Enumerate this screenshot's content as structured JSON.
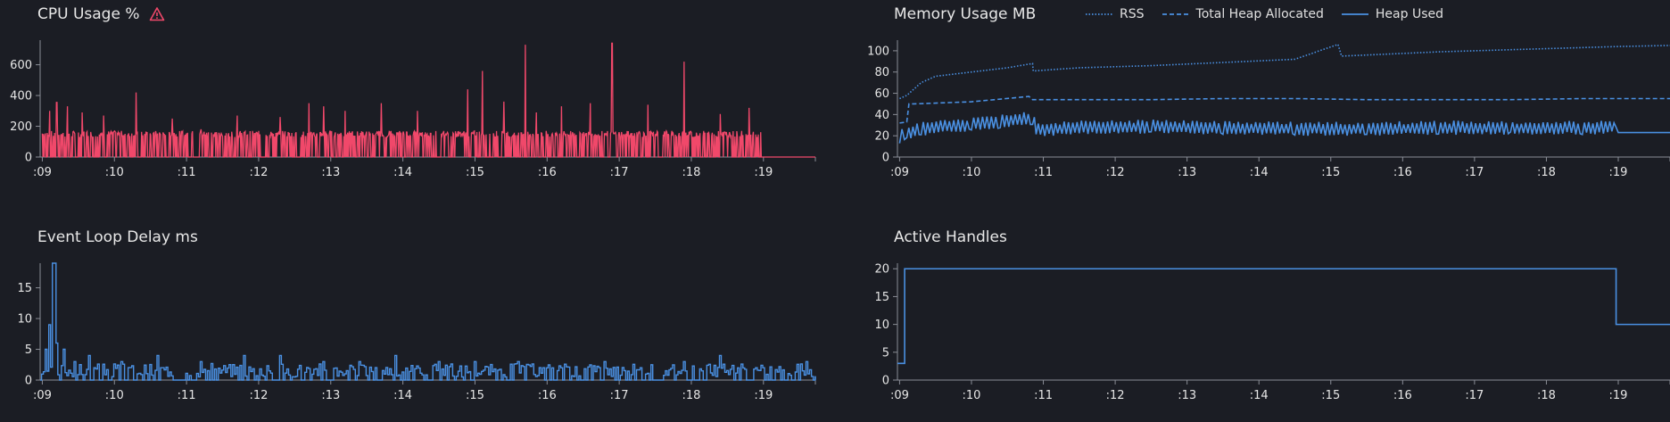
{
  "chart_data": [
    {
      "id": "cpu",
      "type": "line",
      "title": "CPU Usage %",
      "warning_icon": "warning-triangle-icon",
      "color": "#f0486a",
      "ylim": [
        0,
        760
      ],
      "yticks": [
        0,
        200,
        400,
        600
      ],
      "xlabels": [
        ":09",
        ":10",
        ":11",
        ":12",
        ":13",
        ":14",
        ":15",
        ":16",
        ":17",
        ":18",
        ":19"
      ],
      "xlim": [
        8.97,
        19.72
      ],
      "series": [
        {
          "values_description_only": "",
          "spikes": [
            [
              9.02,
              150
            ],
            [
              9.1,
              300
            ],
            [
              9.2,
              355
            ],
            [
              9.35,
              330
            ],
            [
              9.55,
              290
            ],
            [
              9.85,
              270
            ],
            [
              10.3,
              420
            ],
            [
              10.8,
              250
            ],
            [
              11.2,
              180
            ],
            [
              11.7,
              270
            ],
            [
              12.3,
              260
            ],
            [
              12.7,
              350
            ],
            [
              12.9,
              330
            ],
            [
              13.2,
              300
            ],
            [
              13.7,
              350
            ],
            [
              14.2,
              300
            ],
            [
              14.9,
              440
            ],
            [
              15.1,
              560
            ],
            [
              15.4,
              360
            ],
            [
              15.7,
              730
            ],
            [
              15.85,
              290
            ],
            [
              16.2,
              330
            ],
            [
              16.6,
              350
            ],
            [
              16.9,
              740
            ],
            [
              17.4,
              340
            ],
            [
              17.9,
              620
            ],
            [
              18.4,
              280
            ],
            [
              18.8,
              320
            ]
          ],
          "baseline": 150,
          "end_x": 18.97
        }
      ]
    },
    {
      "id": "memory",
      "type": "line",
      "title": "Memory Usage MB",
      "ylim": [
        0,
        110
      ],
      "yticks": [
        0,
        20,
        40,
        60,
        80,
        100
      ],
      "xlabels": [
        ":09",
        ":10",
        ":11",
        ":12",
        ":13",
        ":14",
        ":15",
        ":16",
        ":17",
        ":18",
        ":19"
      ],
      "xlim": [
        8.97,
        19.72
      ],
      "color": "#4a90e2",
      "series": [
        {
          "name": "RSS",
          "style": "dotted",
          "x": [
            9.0,
            9.1,
            9.3,
            9.5,
            10.0,
            10.5,
            10.85,
            10.86,
            11.5,
            12.5,
            13.5,
            14.5,
            15.1,
            15.15,
            15.5,
            16.5,
            17.5,
            18.5,
            19.0,
            19.72
          ],
          "y": [
            55,
            58,
            70,
            76,
            80,
            84,
            88,
            81,
            84,
            86,
            89,
            92,
            106,
            95,
            96,
            99,
            101,
            103,
            104,
            105
          ]
        },
        {
          "name": "Total Heap Allocated",
          "style": "dashed",
          "x": [
            9.0,
            9.1,
            9.13,
            9.2,
            10.0,
            10.8,
            10.85,
            11.5,
            12.5,
            13.5,
            14.5,
            15.5,
            16.5,
            17.5,
            18.5,
            19.72
          ],
          "y": [
            32,
            33,
            50,
            50,
            52,
            57,
            54,
            54,
            54,
            55,
            55,
            54,
            54,
            54,
            55,
            55
          ]
        },
        {
          "name": "Heap Used",
          "style": "solid",
          "x": [
            9.0,
            9.1,
            9.3,
            9.6,
            10.0,
            10.4,
            10.85,
            10.9,
            11.5,
            12.5,
            13.5,
            14.5,
            15.5,
            16.5,
            17.5,
            18.5,
            18.97,
            19.0,
            19.72
          ],
          "y": [
            18,
            22,
            26,
            28,
            30,
            33,
            36,
            25,
            27,
            28,
            27,
            26,
            26,
            27,
            27,
            27,
            28,
            23,
            23
          ]
        }
      ]
    },
    {
      "id": "eventloop",
      "type": "bar",
      "title": "Event Loop Delay ms",
      "color": "#4a90e2",
      "ylim": [
        0,
        19
      ],
      "yticks": [
        0,
        5,
        10,
        15
      ],
      "xlabels": [
        ":09",
        ":10",
        ":11",
        ":12",
        ":13",
        ":14",
        ":15",
        ":16",
        ":17",
        ":18",
        ":19"
      ],
      "xlim": [
        8.97,
        19.72
      ],
      "peaks": [
        [
          9.05,
          5
        ],
        [
          9.1,
          9
        ],
        [
          9.13,
          19
        ],
        [
          9.17,
          19
        ],
        [
          9.2,
          6
        ],
        [
          9.3,
          5
        ],
        [
          9.45,
          3
        ],
        [
          9.65,
          4
        ],
        [
          10.1,
          3
        ],
        [
          10.6,
          4
        ],
        [
          11.2,
          3
        ],
        [
          11.8,
          4
        ],
        [
          12.3,
          4
        ],
        [
          12.9,
          3
        ],
        [
          13.4,
          3
        ],
        [
          13.9,
          4
        ],
        [
          14.5,
          3
        ],
        [
          15.0,
          3
        ],
        [
          15.6,
          3
        ],
        [
          16.2,
          2
        ],
        [
          16.8,
          3
        ],
        [
          17.3,
          2
        ],
        [
          17.9,
          3
        ],
        [
          18.4,
          4
        ],
        [
          19.0,
          2
        ],
        [
          19.6,
          3
        ]
      ]
    },
    {
      "id": "handles",
      "type": "line",
      "title": "Active Handles",
      "color": "#4a90e2",
      "ylim": [
        0,
        21
      ],
      "yticks": [
        0,
        5,
        10,
        15,
        20
      ],
      "xlabels": [
        ":09",
        ":10",
        ":11",
        ":12",
        ":13",
        ":14",
        ":15",
        ":16",
        ":17",
        ":18",
        ":19"
      ],
      "xlim": [
        8.97,
        19.72
      ],
      "steps": [
        [
          8.97,
          3
        ],
        [
          9.07,
          3
        ],
        [
          9.07,
          20
        ],
        [
          18.97,
          20
        ],
        [
          18.97,
          10
        ],
        [
          19.72,
          10
        ]
      ]
    }
  ]
}
